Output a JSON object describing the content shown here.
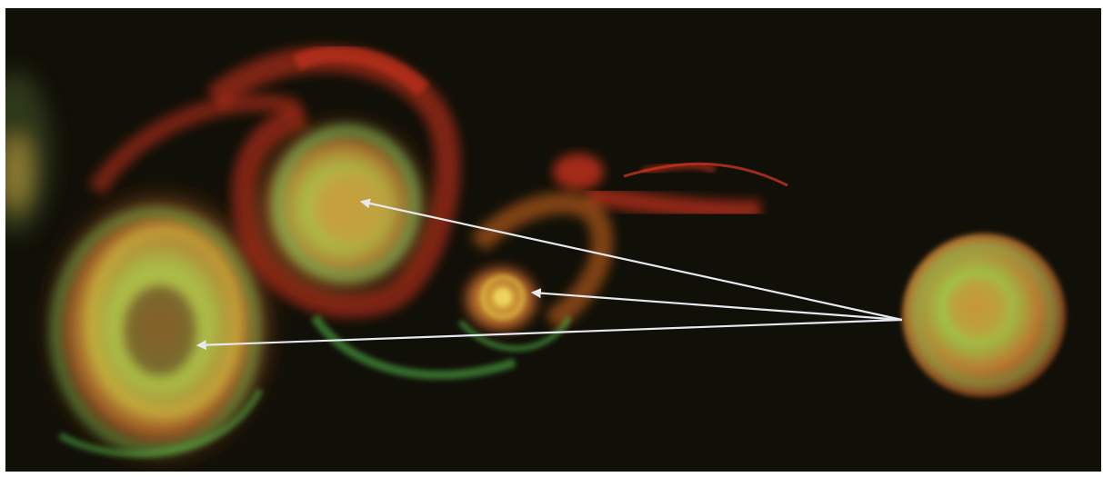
{
  "image": {
    "kind": "scientific-visualization",
    "subject": "vortex rings",
    "background_color": "#111008",
    "palette": {
      "red": "#c8321e",
      "orange": "#d2781e",
      "yellow": "#d7c83c",
      "green": "#5ac850",
      "arrow": "#e6eaf0"
    }
  }
}
